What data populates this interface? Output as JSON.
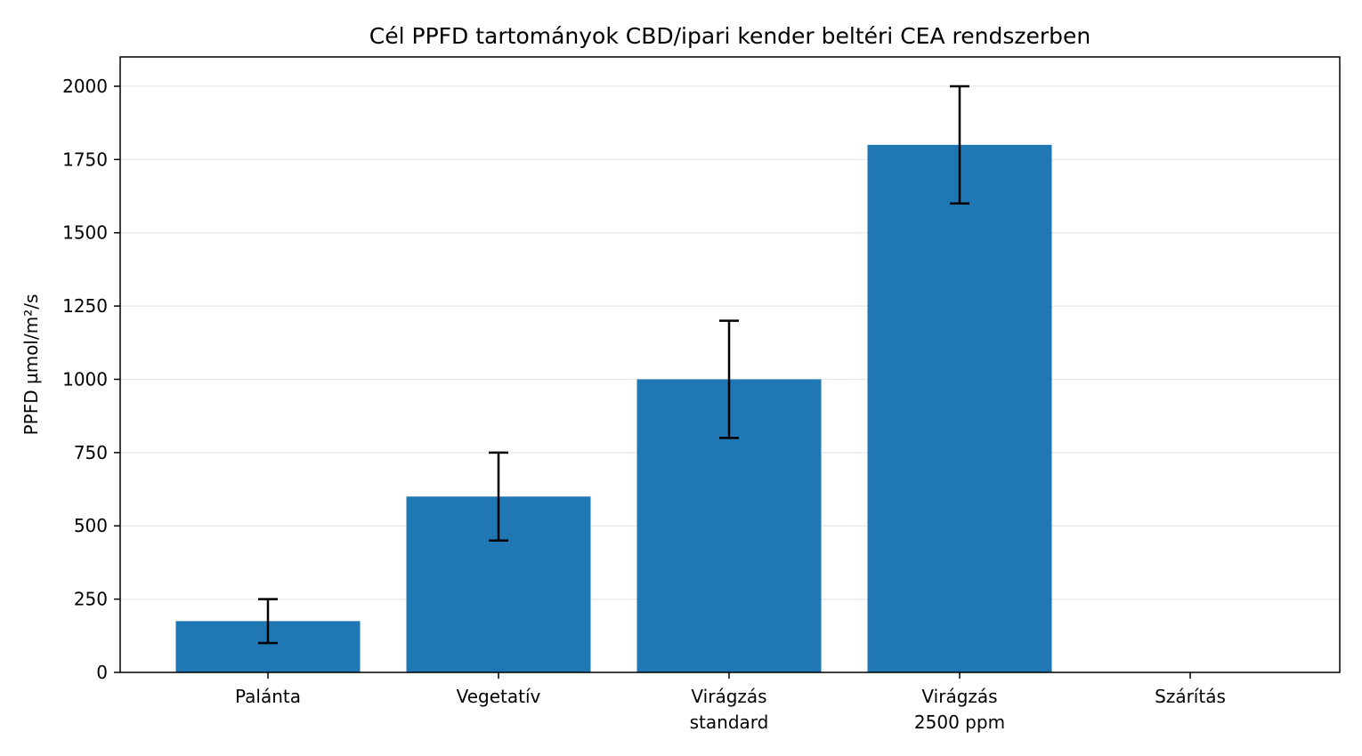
{
  "chart_data": {
    "type": "bar",
    "title": "Cél PPFD tartományok CBD/ipari kender beltéri CEA rendszerben",
    "xlabel": "",
    "ylabel": "PPFD µmol/m²/s",
    "categories": [
      [
        "Palánta"
      ],
      [
        "Vegetatív"
      ],
      [
        "Virágzás",
        "standard"
      ],
      [
        "Virágzás",
        "2500 ppm"
      ],
      [
        "Szárítás"
      ]
    ],
    "values": [
      175,
      600,
      1000,
      1800,
      0
    ],
    "error_low": [
      100,
      450,
      800,
      1600,
      0
    ],
    "error_high": [
      250,
      750,
      1200,
      2000,
      0
    ],
    "ylim": [
      0,
      2100
    ],
    "yticks": [
      0,
      250,
      500,
      750,
      1000,
      1250,
      1500,
      1750,
      2000
    ],
    "grid": "y",
    "legend": "none",
    "colors": {
      "bar": "#1f77b4",
      "error_bar": "#000000",
      "grid": "#e6e6e6",
      "axis": "#000000"
    }
  }
}
